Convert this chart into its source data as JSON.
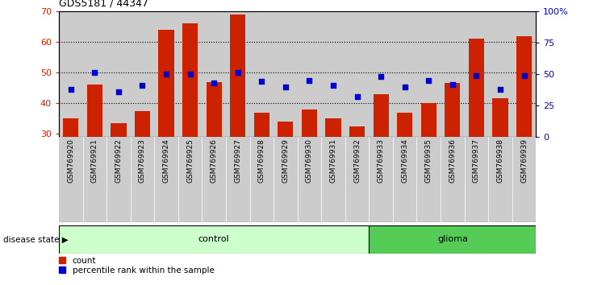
{
  "title": "GDS5181 / 44347",
  "samples": [
    "GSM769920",
    "GSM769921",
    "GSM769922",
    "GSM769923",
    "GSM769924",
    "GSM769925",
    "GSM769926",
    "GSM769927",
    "GSM769928",
    "GSM769929",
    "GSM769930",
    "GSM769931",
    "GSM769932",
    "GSM769933",
    "GSM769934",
    "GSM769935",
    "GSM769936",
    "GSM769937",
    "GSM769938",
    "GSM769939"
  ],
  "bar_values": [
    35,
    46,
    33.5,
    37.5,
    64,
    66,
    47,
    69,
    37,
    34,
    38,
    35,
    32.5,
    43,
    37,
    40,
    46.5,
    61,
    41.5,
    62
  ],
  "dot_values": [
    38,
    51,
    36,
    41,
    50,
    50,
    43,
    51,
    44,
    40,
    45,
    41,
    32,
    48,
    40,
    45,
    42,
    49,
    38,
    49
  ],
  "control_count": 13,
  "glioma_count": 7,
  "ylim_left": [
    29,
    70
  ],
  "ylim_right": [
    0,
    100
  ],
  "yticks_left": [
    30,
    40,
    50,
    60,
    70
  ],
  "yticks_right": [
    0,
    25,
    50,
    75,
    100
  ],
  "yticklabels_right": [
    "0",
    "25",
    "50",
    "75",
    "100%"
  ],
  "bar_color": "#CC2200",
  "dot_color": "#0000CC",
  "control_color": "#CCFFCC",
  "glioma_color": "#55CC55",
  "col_bg_color": "#CCCCCC",
  "legend_count_label": "count",
  "legend_pct_label": "percentile rank within the sample",
  "disease_state_label": "disease state",
  "control_label": "control",
  "glioma_label": "glioma"
}
